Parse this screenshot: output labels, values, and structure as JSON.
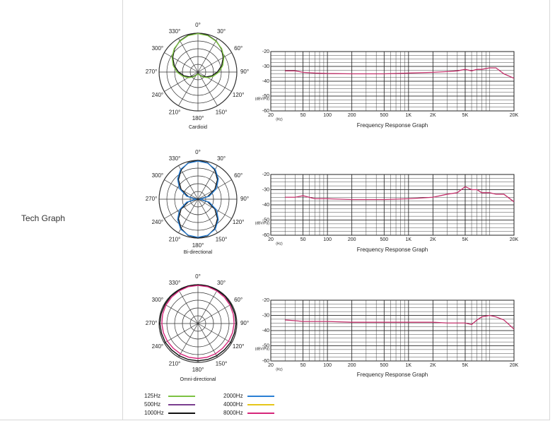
{
  "row_label": "Tech Graph",
  "chart_data": [
    {
      "type": "polar",
      "caption": "Cardioid",
      "theta": [
        0,
        15,
        30,
        45,
        60,
        75,
        90,
        105,
        120,
        135,
        150,
        165,
        180,
        195,
        210,
        225,
        240,
        255,
        270,
        285,
        300,
        315,
        330,
        345
      ],
      "thetaticks": [
        {
          "value": 0,
          "label": "0°"
        },
        {
          "value": 30,
          "label": "30°"
        },
        {
          "value": 60,
          "label": "60°"
        },
        {
          "value": 90,
          "label": "90°"
        },
        {
          "value": 120,
          "label": "120°"
        },
        {
          "value": 150,
          "label": "150°"
        },
        {
          "value": 180,
          "label": "180°"
        },
        {
          "value": 210,
          "label": "210°"
        },
        {
          "value": 240,
          "label": "240°"
        },
        {
          "value": 270,
          "label": "270°"
        },
        {
          "value": 300,
          "label": "300°"
        },
        {
          "value": 330,
          "label": "330°"
        }
      ],
      "rlim": [
        0,
        1
      ],
      "series": [
        {
          "color": "#111111",
          "values": [
            1,
            0.98,
            0.93,
            0.85,
            0.75,
            0.63,
            0.5,
            0.37,
            0.25,
            0.15,
            0.08,
            0.05,
            0.04,
            0.05,
            0.08,
            0.15,
            0.25,
            0.37,
            0.5,
            0.63,
            0.75,
            0.85,
            0.93,
            0.98
          ]
        },
        {
          "color": "#7cc242",
          "values": [
            0.99,
            0.97,
            0.92,
            0.86,
            0.77,
            0.66,
            0.54,
            0.41,
            0.29,
            0.18,
            0.1,
            0.06,
            0.05,
            0.06,
            0.1,
            0.18,
            0.29,
            0.41,
            0.54,
            0.66,
            0.77,
            0.86,
            0.92,
            0.97
          ]
        }
      ]
    },
    {
      "type": "line",
      "title": "Frequency Response Graph",
      "x_unit": "(Hz)",
      "y_unit": "(dBV/Pa)",
      "xscale": "log",
      "xlim": [
        20,
        20000
      ],
      "xticks": [
        20,
        50,
        100,
        200,
        500,
        {
          "value": 1000,
          "label": "1K"
        },
        {
          "value": 2000,
          "label": "2K"
        },
        {
          "value": 5000,
          "label": "5K"
        },
        {
          "value": 20000,
          "label": "20K"
        }
      ],
      "ylim": [
        -60,
        -20
      ],
      "yticks": [
        -20,
        -30,
        -40,
        -50,
        -60
      ],
      "x": [
        30,
        40,
        50,
        70,
        100,
        200,
        500,
        1000,
        2000,
        3000,
        4000,
        5000,
        6000,
        7000,
        8000,
        10000,
        12000,
        15000,
        20000
      ],
      "series": [
        {
          "color": "#c2306a",
          "values": [
            -33,
            -33,
            -34,
            -34.5,
            -34.8,
            -35,
            -35,
            -34.5,
            -34,
            -33.5,
            -33,
            -32,
            -33,
            -32,
            -32,
            -31,
            -31,
            -35,
            -38
          ]
        }
      ]
    },
    {
      "type": "polar",
      "caption": "Bi-directional",
      "theta": [
        0,
        15,
        30,
        45,
        60,
        75,
        90,
        105,
        120,
        135,
        150,
        165,
        180,
        195,
        210,
        225,
        240,
        255,
        270,
        285,
        300,
        315,
        330,
        345
      ],
      "thetaticks": [
        {
          "value": 0,
          "label": "0°"
        },
        {
          "value": 30,
          "label": "30°"
        },
        {
          "value": 60,
          "label": "60°"
        },
        {
          "value": 90,
          "label": "90°"
        },
        {
          "value": 120,
          "label": "120°"
        },
        {
          "value": 150,
          "label": "150°"
        },
        {
          "value": 180,
          "label": "180°"
        },
        {
          "value": 210,
          "label": "210°"
        },
        {
          "value": 240,
          "label": "240°"
        },
        {
          "value": 270,
          "label": "270°"
        },
        {
          "value": 300,
          "label": "300°"
        },
        {
          "value": 330,
          "label": "330°"
        }
      ],
      "rlim": [
        0,
        1
      ],
      "series": [
        {
          "color": "#111111",
          "values": [
            1,
            0.97,
            0.87,
            0.71,
            0.5,
            0.26,
            0.02,
            0.26,
            0.5,
            0.71,
            0.87,
            0.97,
            1,
            0.97,
            0.87,
            0.71,
            0.5,
            0.26,
            0.02,
            0.26,
            0.5,
            0.71,
            0.87,
            0.97
          ]
        },
        {
          "color": "#2a7fd4",
          "values": [
            0.98,
            0.96,
            0.89,
            0.74,
            0.55,
            0.3,
            0.05,
            0.3,
            0.55,
            0.74,
            0.89,
            0.96,
            0.98,
            0.96,
            0.89,
            0.74,
            0.55,
            0.3,
            0.05,
            0.3,
            0.55,
            0.74,
            0.89,
            0.96
          ]
        }
      ]
    },
    {
      "type": "line",
      "title": "Frequency Response Graph",
      "x_unit": "(Hz)",
      "y_unit": "(dBV/Pa)",
      "xscale": "log",
      "xlim": [
        20,
        20000
      ],
      "xticks": [
        20,
        50,
        100,
        200,
        500,
        {
          "value": 1000,
          "label": "1K"
        },
        {
          "value": 2000,
          "label": "2K"
        },
        {
          "value": 5000,
          "label": "5K"
        },
        {
          "value": 20000,
          "label": "20K"
        }
      ],
      "ylim": [
        -60,
        -20
      ],
      "yticks": [
        -20,
        -30,
        -40,
        -50,
        -60
      ],
      "x": [
        30,
        40,
        50,
        70,
        100,
        200,
        500,
        1000,
        2000,
        3000,
        4000,
        5000,
        6000,
        7000,
        8000,
        10000,
        12000,
        15000,
        20000
      ],
      "series": [
        {
          "color": "#c2306a",
          "values": [
            -35,
            -35,
            -34,
            -36,
            -36,
            -36.5,
            -36.5,
            -36,
            -35,
            -33,
            -32,
            -28,
            -30,
            -30,
            -32,
            -32,
            -33,
            -33,
            -38
          ]
        }
      ]
    },
    {
      "type": "polar",
      "caption": "Omni-directional",
      "theta": [
        0,
        15,
        30,
        45,
        60,
        75,
        90,
        105,
        120,
        135,
        150,
        165,
        180,
        195,
        210,
        225,
        240,
        255,
        270,
        285,
        300,
        315,
        330,
        345
      ],
      "thetaticks": [
        {
          "value": 0,
          "label": "0°"
        },
        {
          "value": 30,
          "label": "30°"
        },
        {
          "value": 60,
          "label": "60°"
        },
        {
          "value": 90,
          "label": "90°"
        },
        {
          "value": 120,
          "label": "120°"
        },
        {
          "value": 150,
          "label": "150°"
        },
        {
          "value": 180,
          "label": "180°"
        },
        {
          "value": 210,
          "label": "210°"
        },
        {
          "value": 240,
          "label": "240°"
        },
        {
          "value": 270,
          "label": "270°"
        },
        {
          "value": 300,
          "label": "300°"
        },
        {
          "value": 330,
          "label": "330°"
        }
      ],
      "rlim": [
        0,
        1
      ],
      "series": [
        {
          "color": "#111111",
          "values": [
            1,
            1,
            0.99,
            0.99,
            0.98,
            0.98,
            0.98,
            0.97,
            0.97,
            0.96,
            0.96,
            0.96,
            0.96,
            0.96,
            0.96,
            0.96,
            0.97,
            0.97,
            0.98,
            0.98,
            0.98,
            0.99,
            0.99,
            1
          ]
        },
        {
          "color": "#d6257a",
          "values": [
            0.98,
            0.98,
            0.97,
            0.96,
            0.95,
            0.94,
            0.93,
            0.92,
            0.91,
            0.9,
            0.9,
            0.9,
            0.9,
            0.9,
            0.9,
            0.9,
            0.91,
            0.92,
            0.93,
            0.94,
            0.95,
            0.96,
            0.97,
            0.98
          ]
        }
      ]
    },
    {
      "type": "line",
      "title": "Frequency Response Graph",
      "x_unit": "(Hz)",
      "y_unit": "(dBV/Pa)",
      "xscale": "log",
      "xlim": [
        20,
        20000
      ],
      "xticks": [
        20,
        50,
        100,
        200,
        500,
        {
          "value": 1000,
          "label": "1K"
        },
        {
          "value": 2000,
          "label": "2K"
        },
        {
          "value": 5000,
          "label": "5K"
        },
        {
          "value": 20000,
          "label": "20K"
        }
      ],
      "ylim": [
        -60,
        -20
      ],
      "yticks": [
        -20,
        -30,
        -40,
        -50,
        -60
      ],
      "x": [
        30,
        40,
        50,
        70,
        100,
        200,
        500,
        1000,
        2000,
        3000,
        4000,
        5000,
        6000,
        7000,
        8000,
        10000,
        12000,
        15000,
        20000
      ],
      "series": [
        {
          "color": "#c2306a",
          "values": [
            -33,
            -33.5,
            -34,
            -34,
            -34,
            -34.5,
            -34.5,
            -34.5,
            -34.5,
            -35,
            -35,
            -35,
            -36,
            -33,
            -31,
            -30,
            -31,
            -33,
            -39
          ]
        }
      ]
    }
  ],
  "legend": [
    {
      "name": "125Hz",
      "color": "#7cc242"
    },
    {
      "name": "500Hz",
      "color": "#7a3d8f"
    },
    {
      "name": "1000Hz",
      "color": "#111111"
    },
    {
      "name": "2000Hz",
      "color": "#2a7fd4"
    },
    {
      "name": "4000Hz",
      "color": "#e6c619"
    },
    {
      "name": "8000Hz",
      "color": "#d6257a"
    }
  ]
}
